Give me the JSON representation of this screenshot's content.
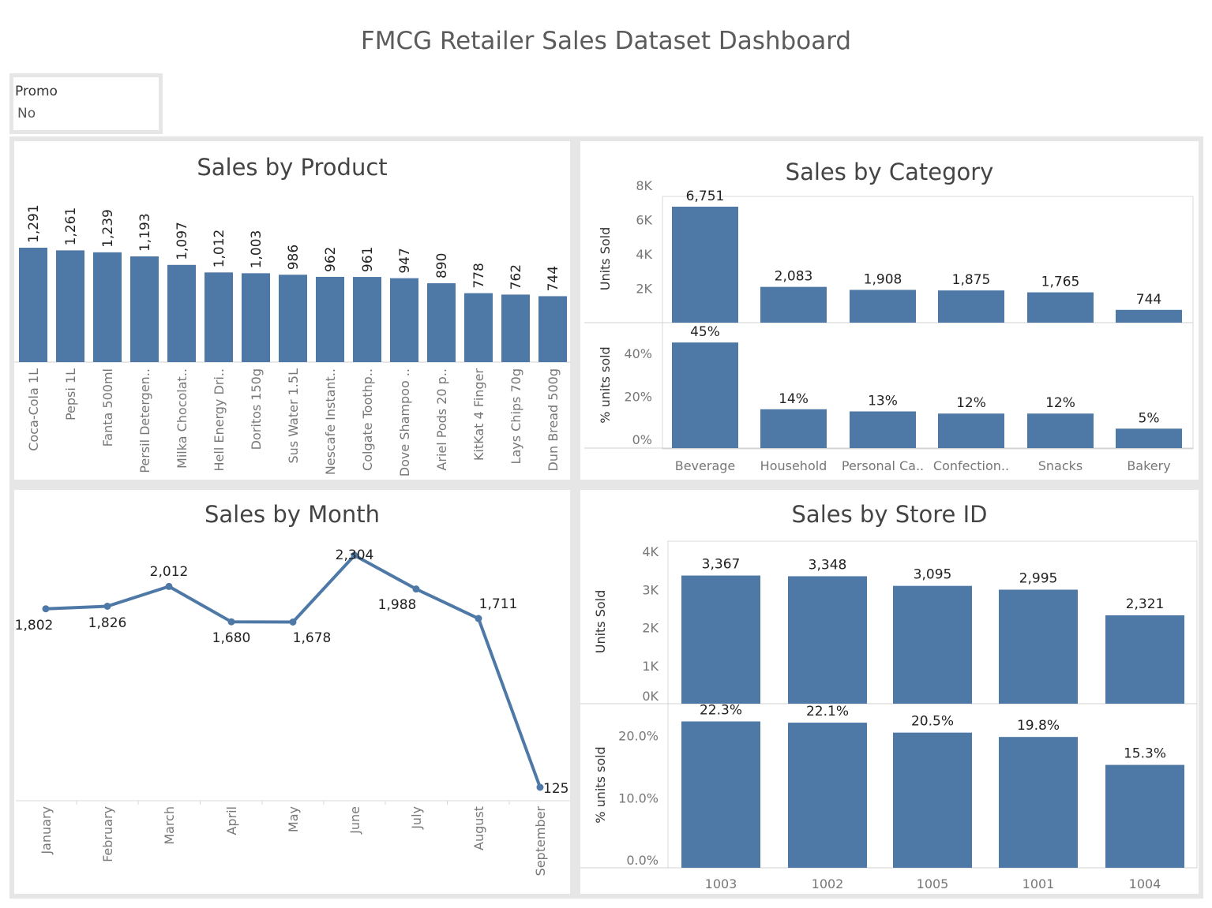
{
  "dashboard_title": "FMCG Retailer Sales Dataset Dashboard",
  "filter": {
    "label": "Promo",
    "value": "No"
  },
  "colors": {
    "bar": "#4e79a7",
    "panel_bg": "#ffffff",
    "frame": "#e6e6e6"
  },
  "panels": {
    "product": {
      "title": "Sales by Product"
    },
    "category": {
      "title": "Sales by Category"
    },
    "month": {
      "title": "Sales by Month"
    },
    "store": {
      "title": "Sales by Store ID"
    }
  },
  "chart_data": [
    {
      "id": "product",
      "type": "bar",
      "title": "Sales by Product",
      "categories": [
        "Coca-Cola 1L",
        "Pepsi 1L",
        "Fanta 500ml",
        "Persil Detergen..",
        "Milka Chocolat..",
        "Hell Energy Dri..",
        "Doritos 150g",
        "Sus Water 1.5L",
        "Nescafe Instant..",
        "Colgate Toothp..",
        "Dove Shampoo ..",
        "Ariel Pods 20 p..",
        "KitKat 4 Finger",
        "Lays Chips 70g",
        "Dun Bread 500g"
      ],
      "values": [
        1291,
        1261,
        1239,
        1193,
        1097,
        1012,
        1003,
        986,
        962,
        961,
        947,
        890,
        778,
        762,
        744
      ],
      "value_labels": [
        "1,291",
        "1,261",
        "1,239",
        "1,193",
        "1,097",
        "1,012",
        "1,003",
        "986",
        "962",
        "961",
        "947",
        "890",
        "778",
        "762",
        "744"
      ]
    },
    {
      "id": "category",
      "type": "bar",
      "title": "Sales by Category",
      "categories": [
        "Beverage",
        "Household",
        "Personal Ca..",
        "Confection..",
        "Snacks",
        "Bakery"
      ],
      "series": [
        {
          "name": "Units Sold",
          "values": [
            6751,
            2083,
            1908,
            1875,
            1765,
            744
          ],
          "value_labels": [
            "6,751",
            "2,083",
            "1,908",
            "1,875",
            "1,765",
            "744"
          ],
          "ylabel": "Units Sold",
          "ylim": [
            0,
            8500
          ],
          "ticks": [
            2000,
            4000,
            6000,
            8000
          ],
          "tick_labels": [
            "2K",
            "4K",
            "6K",
            "8K"
          ]
        },
        {
          "name": "% units sold",
          "values": [
            45,
            14,
            13,
            12,
            12,
            5
          ],
          "value_labels": [
            "45%",
            "14%",
            "13%",
            "12%",
            "12%",
            "5%"
          ],
          "ylabel": "% units sold",
          "ylim": [
            0,
            51
          ],
          "ticks": [
            0,
            20,
            40
          ],
          "tick_labels": [
            "0%",
            "20%",
            "40%"
          ]
        }
      ]
    },
    {
      "id": "month",
      "type": "line",
      "title": "Sales by Month",
      "categories": [
        "January",
        "February",
        "March",
        "April",
        "May",
        "June",
        "July",
        "August",
        "September"
      ],
      "values": [
        1802,
        1826,
        2012,
        1680,
        1678,
        2304,
        1988,
        1711,
        125
      ],
      "value_labels": [
        "1,802",
        "1,826",
        "2,012",
        "1,680",
        "1,678",
        "2,304",
        "1,988",
        "1,711",
        "125"
      ]
    },
    {
      "id": "store",
      "type": "bar",
      "title": "Sales by Store ID",
      "categories": [
        "1003",
        "1002",
        "1005",
        "1001",
        "1004"
      ],
      "series": [
        {
          "name": "Units Sold",
          "values": [
            3367,
            3348,
            3095,
            2995,
            2321
          ],
          "value_labels": [
            "3,367",
            "3,348",
            "3,095",
            "2,995",
            "2,321"
          ],
          "ylabel": "Units Sold",
          "ylim": [
            0,
            4000
          ],
          "ticks": [
            0,
            1000,
            2000,
            3000,
            4000
          ],
          "tick_labels": [
            "0K",
            "1K",
            "2K",
            "3K",
            "4K"
          ]
        },
        {
          "name": "% units sold",
          "values": [
            22.3,
            22.1,
            20.5,
            19.8,
            15.3
          ],
          "value_labels": [
            "22.3%",
            "22.1%",
            "20.5%",
            "19.8%",
            "15.3%"
          ],
          "ylabel": "% units sold",
          "ylim": [
            0,
            25
          ],
          "ticks": [
            0,
            10,
            20
          ],
          "tick_labels": [
            "0.0%",
            "10.0%",
            "20.0%"
          ]
        }
      ]
    }
  ]
}
